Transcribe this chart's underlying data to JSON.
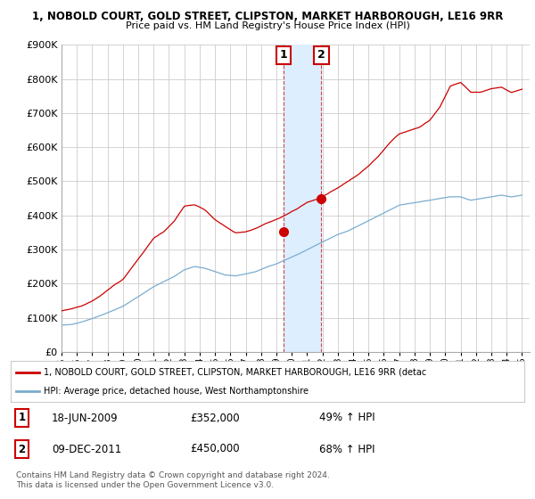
{
  "title": "1, NOBOLD COURT, GOLD STREET, CLIPSTON, MARKET HARBOROUGH, LE16 9RR",
  "subtitle": "Price paid vs. HM Land Registry's House Price Index (HPI)",
  "red_label": "1, NOBOLD COURT, GOLD STREET, CLIPSTON, MARKET HARBOROUGH, LE16 9RR (detac",
  "blue_label": "HPI: Average price, detached house, West Northamptonshire",
  "transaction1_date": "18-JUN-2009",
  "transaction1_price": 352000,
  "transaction1_hpi": "49% ↑ HPI",
  "transaction2_date": "09-DEC-2011",
  "transaction2_price": 450000,
  "transaction2_hpi": "68% ↑ HPI",
  "footer": "Contains HM Land Registry data © Crown copyright and database right 2024.\nThis data is licensed under the Open Government Licence v3.0.",
  "red_color": "#cc0000",
  "blue_color": "#7aadcf",
  "highlight_color": "#ddeeff",
  "trans1_x": 2009.46,
  "trans1_y": 352000,
  "trans2_x": 2011.93,
  "trans2_y": 450000,
  "highlight_x1": 2009.46,
  "highlight_x2": 2011.93,
  "ylim": [
    0,
    900000
  ],
  "yticks": [
    0,
    100000,
    200000,
    300000,
    400000,
    500000,
    600000,
    700000,
    800000,
    900000
  ],
  "xmin": 1995.0,
  "xmax": 2025.5
}
